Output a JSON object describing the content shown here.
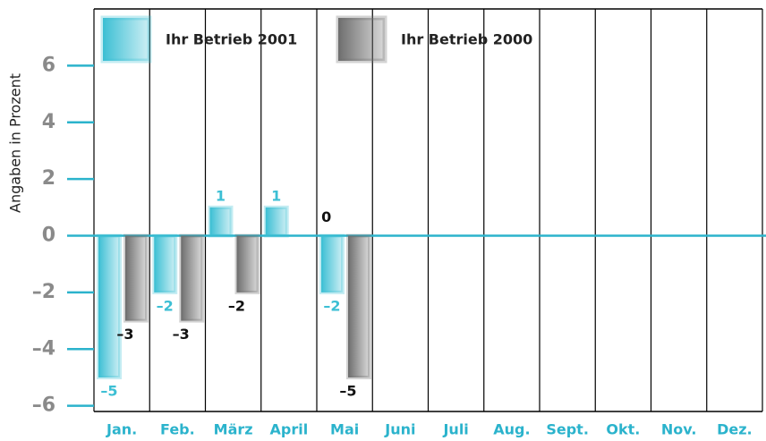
{
  "chart_data": {
    "type": "bar",
    "y_label": "Angaben in Prozent",
    "categories": [
      "Jan.",
      "Feb.",
      "März",
      "April",
      "Mai",
      "Juni",
      "Juli",
      "Aug.",
      "Sept.",
      "Okt.",
      "Nov.",
      "Dez."
    ],
    "series": [
      {
        "name": "Ihr Betrieb 2001",
        "color": "#3cbfd4",
        "values": [
          -5,
          -2,
          1,
          1,
          -2,
          null,
          null,
          null,
          null,
          null,
          null,
          null
        ],
        "value_labels": [
          "–5",
          "–2",
          "1",
          "1",
          "–2",
          null,
          null,
          null,
          null,
          null,
          null,
          null
        ]
      },
      {
        "name": "Ihr Betrieb 2000",
        "color": "#6e6e6e",
        "values": [
          -3,
          -3,
          -2,
          0,
          -5,
          null,
          null,
          null,
          null,
          null,
          null,
          null
        ],
        "value_labels": [
          "–3",
          "–3",
          "–2",
          "0",
          "–5",
          null,
          null,
          null,
          null,
          null,
          null,
          null
        ]
      }
    ],
    "ylim": [
      -6.2,
      8
    ],
    "yticks": [
      {
        "value": -6,
        "label": "–6"
      },
      {
        "value": -4,
        "label": "–4"
      },
      {
        "value": -2,
        "label": "–2"
      },
      0,
      2,
      4,
      6
    ],
    "legend": "top-left"
  }
}
